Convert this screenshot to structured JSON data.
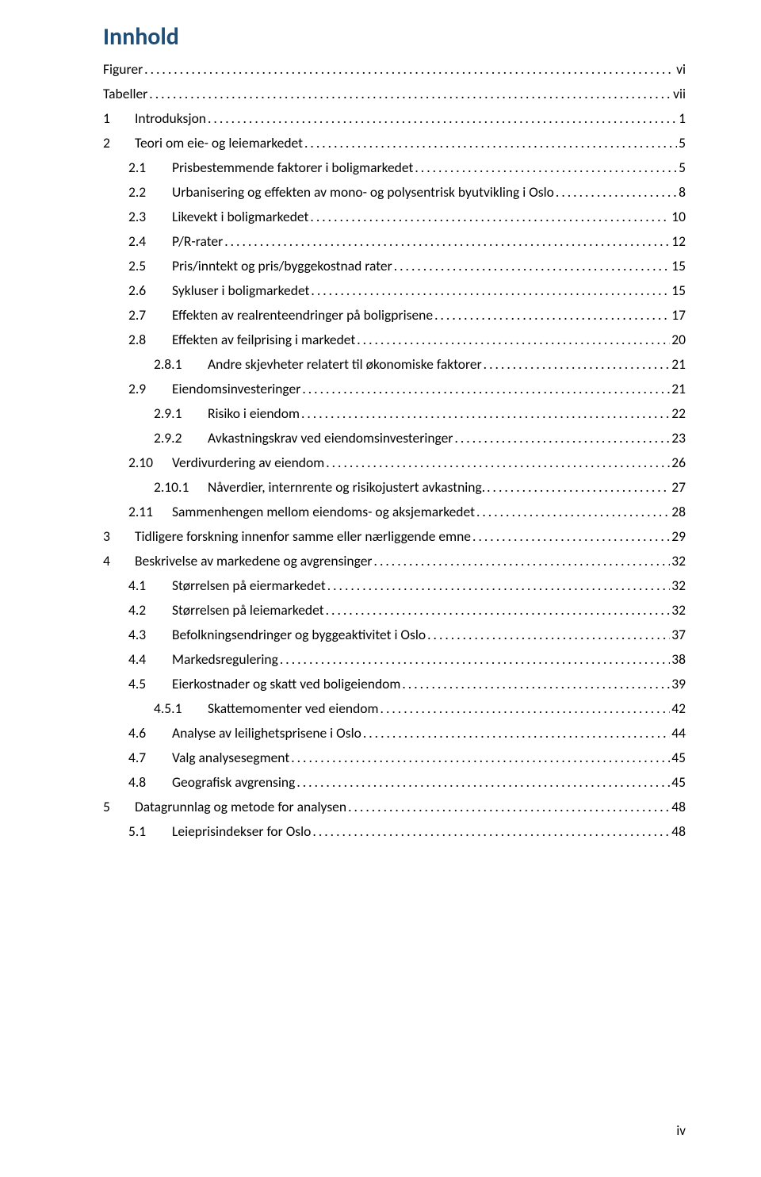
{
  "title_text": "Innhold",
  "title_color": "#1f4e79",
  "text_color": "#000000",
  "footer_page": "iv",
  "entries": [
    {
      "level": 0,
      "num": "",
      "label": "Figurer",
      "page": "vi"
    },
    {
      "level": 0,
      "num": "",
      "label": "Tabeller",
      "page": "vii"
    },
    {
      "level": 1,
      "num": "1",
      "label": "Introduksjon",
      "page": "1"
    },
    {
      "level": 1,
      "num": "2",
      "label": "Teori om eie- og leiemarkedet",
      "page": "5"
    },
    {
      "level": 2,
      "num": "2.1",
      "label": "Prisbestemmende faktorer i boligmarkedet",
      "page": "5"
    },
    {
      "level": 2,
      "num": "2.2",
      "label": "Urbanisering og effekten av mono- og polysentrisk byutvikling i Oslo",
      "page": "8"
    },
    {
      "level": 2,
      "num": "2.3",
      "label": "Likevekt i boligmarkedet",
      "page": "10"
    },
    {
      "level": 2,
      "num": "2.4",
      "label": "P/R-rater",
      "page": "12"
    },
    {
      "level": 2,
      "num": "2.5",
      "label": "Pris/inntekt og pris/byggekostnad rater",
      "page": "15"
    },
    {
      "level": 2,
      "num": "2.6",
      "label": "Sykluser i boligmarkedet",
      "page": "15"
    },
    {
      "level": 2,
      "num": "2.7",
      "label": "Effekten av realrenteendringer på boligprisene",
      "page": "17"
    },
    {
      "level": 2,
      "num": "2.8",
      "label": "Effekten av feilprising i markedet",
      "page": "20"
    },
    {
      "level": 3,
      "num": "2.8.1",
      "label": "Andre skjevheter relatert til økonomiske faktorer",
      "page": "21"
    },
    {
      "level": 2,
      "num": "2.9",
      "label": "Eiendomsinvesteringer",
      "page": "21"
    },
    {
      "level": 3,
      "num": "2.9.1",
      "label": "Risiko i eiendom",
      "page": "22"
    },
    {
      "level": 3,
      "num": "2.9.2",
      "label": "Avkastningskrav ved eiendomsinvesteringer",
      "page": "23"
    },
    {
      "level": 2,
      "num": "2.10",
      "label": "Verdivurdering av eiendom",
      "page": "26"
    },
    {
      "level": 3,
      "num": "2.10.1",
      "label": "Nåverdier, internrente og risikojustert avkastning.",
      "page": "27"
    },
    {
      "level": 2,
      "num": "2.11",
      "label": "Sammenhengen mellom eiendoms- og aksjemarkedet",
      "page": "28"
    },
    {
      "level": 1,
      "num": "3",
      "label": "Tidligere forskning innenfor samme eller nærliggende emne",
      "page": "29"
    },
    {
      "level": 1,
      "num": "4",
      "label": "Beskrivelse av markedene og avgrensinger",
      "page": "32"
    },
    {
      "level": 2,
      "num": "4.1",
      "label": "Størrelsen på eiermarkedet",
      "page": "32"
    },
    {
      "level": 2,
      "num": "4.2",
      "label": "Størrelsen på leiemarkedet",
      "page": "32"
    },
    {
      "level": 2,
      "num": "4.3",
      "label": "Befolkningsendringer og byggeaktivitet i Oslo",
      "page": "37"
    },
    {
      "level": 2,
      "num": "4.4",
      "label": "Markedsregulering",
      "page": "38"
    },
    {
      "level": 2,
      "num": "4.5",
      "label": "Eierkostnader og skatt ved boligeiendom",
      "page": "39"
    },
    {
      "level": 3,
      "num": "4.5.1",
      "label": "Skattemomenter ved eiendom",
      "page": "42"
    },
    {
      "level": 2,
      "num": "4.6",
      "label": "Analyse av leilighetsprisene i Oslo",
      "page": "44"
    },
    {
      "level": 2,
      "num": "4.7",
      "label": "Valg analysesegment",
      "page": "45"
    },
    {
      "level": 2,
      "num": "4.8",
      "label": "Geografisk avgrensing",
      "page": "45"
    },
    {
      "level": 1,
      "num": "5",
      "label": "Datagrunnlag og metode for analysen",
      "page": "48"
    },
    {
      "level": 2,
      "num": "5.1",
      "label": "Leieprisindekser for Oslo",
      "page": "48"
    }
  ]
}
